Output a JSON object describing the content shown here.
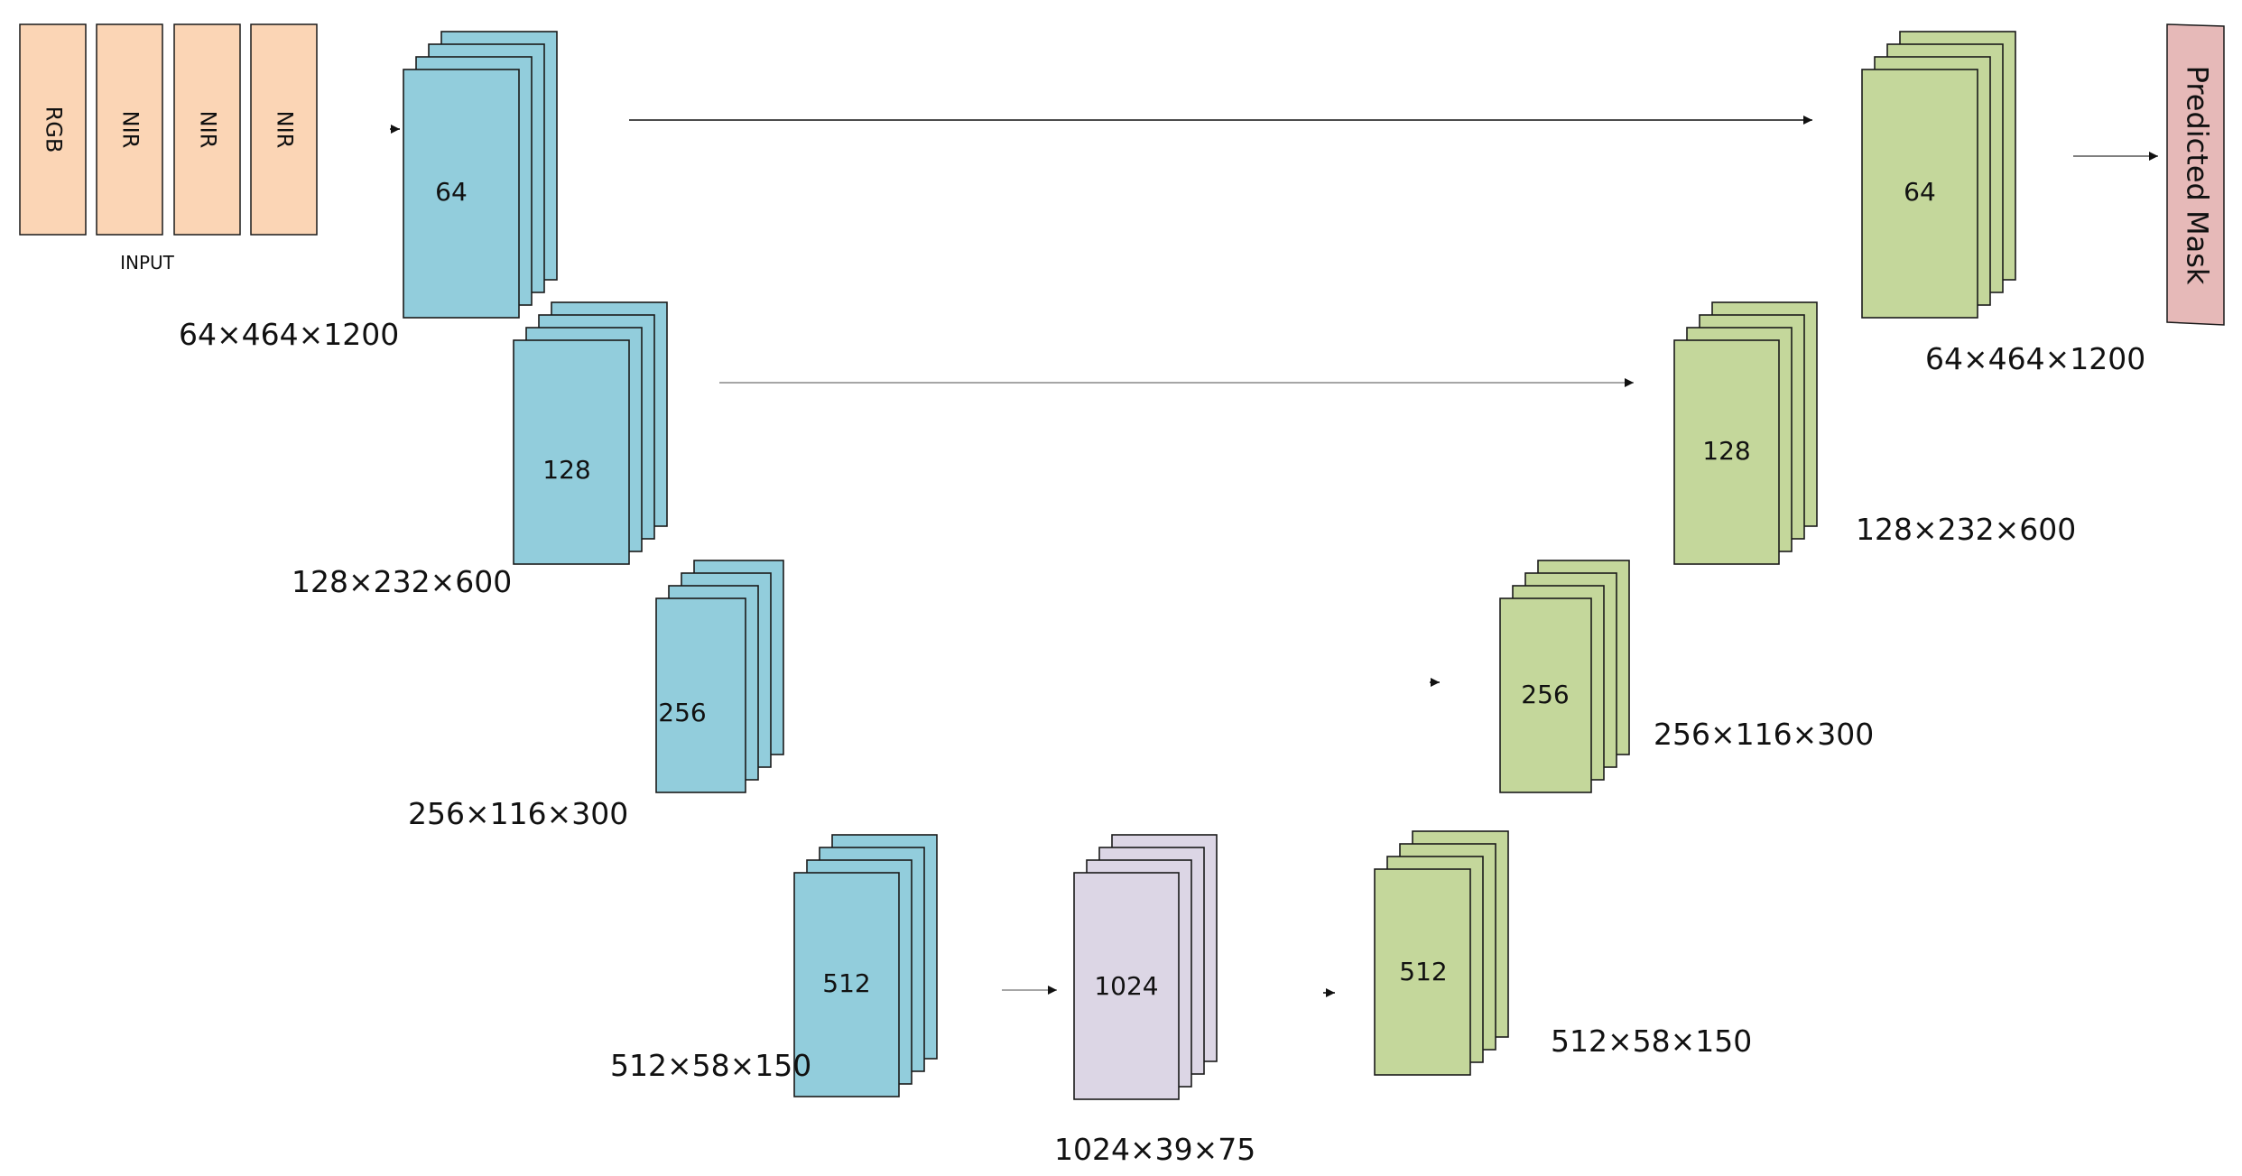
{
  "input": {
    "channels": [
      "RGB",
      "NIR",
      "NIR",
      "NIR"
    ],
    "label": "INPUT",
    "color": "#fbd5b5"
  },
  "colors": {
    "encoder": "#92cddc",
    "bottleneck": "#dcd6e5",
    "decoder": "#c4d79b",
    "output": "#e6b9b8",
    "stroke": "#1a1a1a"
  },
  "encoder": [
    {
      "channels": "64",
      "dims": "64×464×1200"
    },
    {
      "channels": "128",
      "dims": "128×232×600"
    },
    {
      "channels": "256",
      "dims": "256×116×300"
    },
    {
      "channels": "512",
      "dims": "512×58×150"
    }
  ],
  "bottleneck": {
    "channels": "1024",
    "dims": "1024×39×75"
  },
  "decoder": [
    {
      "channels": "512",
      "dims": "512×58×150"
    },
    {
      "channels": "256",
      "dims": "256×116×300"
    },
    {
      "channels": "128",
      "dims": "128×232×600"
    },
    {
      "channels": "64",
      "dims": "64×464×1200"
    }
  ],
  "output": {
    "label": "Predicted Mask"
  }
}
